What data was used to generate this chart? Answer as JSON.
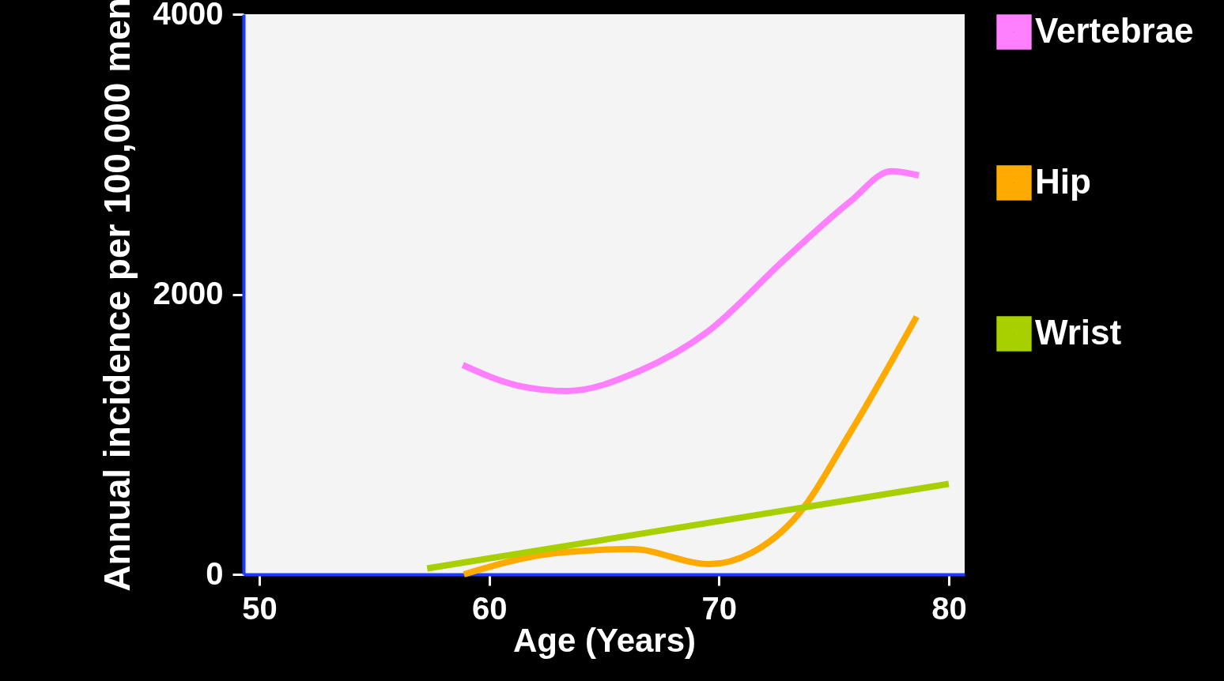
{
  "chart_data": {
    "type": "line",
    "xlabel": "Age (Years)",
    "ylabel": "Annual incidence per 100,000 men",
    "xlim": [
      49.31,
      80.69
    ],
    "xticks": [
      50,
      60,
      70,
      80
    ],
    "ylim": [
      0,
      4000
    ],
    "yticks": [
      0,
      2000,
      4000
    ],
    "grid": false,
    "legend": "right",
    "line_style": "solid",
    "marker": "none",
    "series": [
      {
        "name": "Vertebrae",
        "color": "#ff80ff",
        "x": [
          58.85,
          61.25,
          63.4,
          66.5,
          69.5,
          72.8,
          75.7,
          77.5,
          78.7
        ],
        "values": [
          1495,
          1348,
          1309,
          1450,
          1732,
          2240,
          2661,
          2879,
          2849
        ]
      },
      {
        "name": "Hip",
        "color": "#ffaa00",
        "x": [
          58.9,
          62.9,
          66.2,
          69.6,
          71.4,
          73.4,
          75.7,
          78.6
        ],
        "values": [
          0,
          152,
          180,
          73,
          152,
          418,
          1009,
          1840
        ]
      },
      {
        "name": "Wrist",
        "color": "#a8d000",
        "x": [
          57.3,
          80
        ],
        "values": [
          42,
          646
        ]
      }
    ]
  }
}
